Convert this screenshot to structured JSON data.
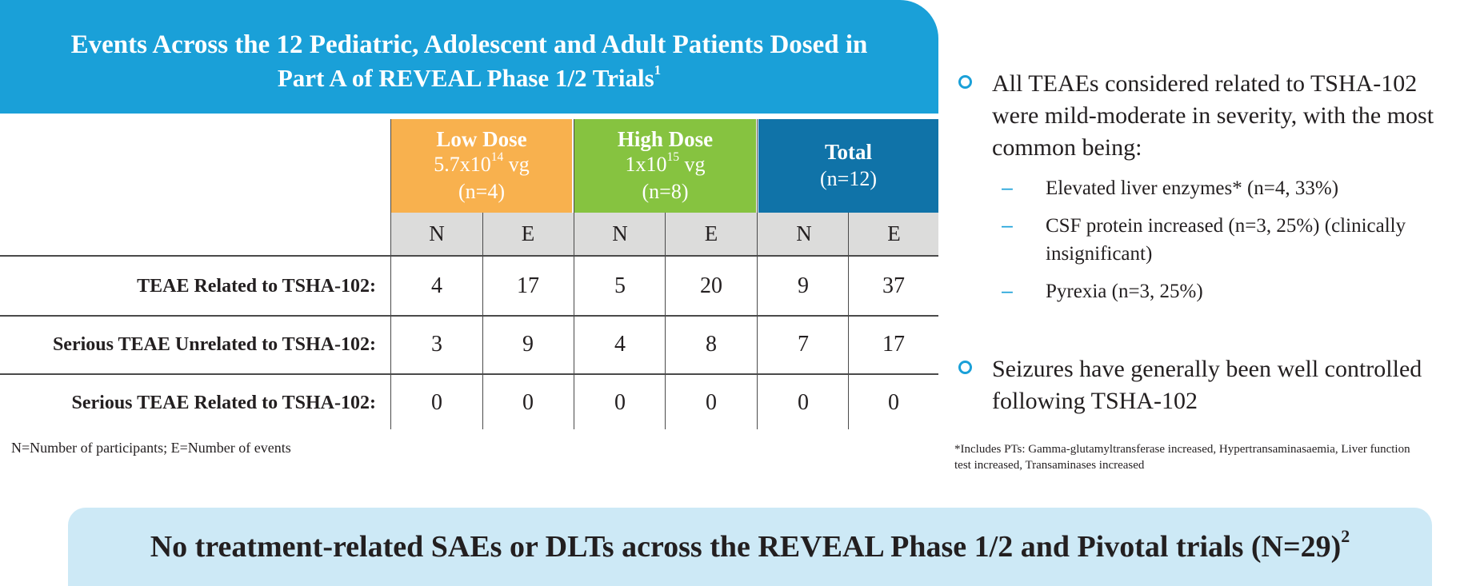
{
  "header": {
    "line1": "Events Across the 12 Pediatric, Adolescent and Adult Patients Dosed in",
    "line2": "Part A of REVEAL Phase 1/2 Trials",
    "line2_sup": "1"
  },
  "groups": {
    "low": {
      "name": "Low Dose",
      "dose_base": "5.7x10",
      "dose_exp": "14",
      "dose_unit": " vg",
      "n": "(n=4)"
    },
    "high": {
      "name": "High Dose",
      "dose_base": "1x10",
      "dose_exp": "15",
      "dose_unit": " vg",
      "n": "(n=8)"
    },
    "total": {
      "name": "Total",
      "n": "(n=12)"
    }
  },
  "subheaders": [
    "N",
    "E",
    "N",
    "E",
    "N",
    "E"
  ],
  "rows": [
    {
      "label": "TEAE Related to TSHA-102:",
      "values": [
        "4",
        "17",
        "5",
        "20",
        "9",
        "37"
      ]
    },
    {
      "label": "Serious TEAE Unrelated to TSHA-102:",
      "values": [
        "3",
        "9",
        "4",
        "8",
        "7",
        "17"
      ]
    },
    {
      "label": "Serious TEAE Related to TSHA-102:",
      "values": [
        "0",
        "0",
        "0",
        "0",
        "0",
        "0"
      ]
    }
  ],
  "footnote_left": "N=Number of participants; E=Number of events",
  "bullets": {
    "first": {
      "line1": "All TEAEs considered related to TSHA-102",
      "line2": "were mild-moderate in severity, with the most",
      "line3": "common being:"
    },
    "subs": [
      {
        "line1": "Elevated liver enzymes* (n=4, 33%)"
      },
      {
        "line1": "CSF protein increased (n=3, 25%) (clinically",
        "line2": "insignificant)"
      },
      {
        "line1": "Pyrexia (n=3, 25%)"
      }
    ],
    "second": {
      "line1": "Seizures have generally been well controlled",
      "line2": "following TSHA-102"
    }
  },
  "footnote_right": {
    "line1": "*Includes PTs: Gamma-glutamyltransferase increased, Hypertransaminasaemia, Liver function",
    "line2": "test increased, Transaminases increased"
  },
  "bottom_banner": {
    "text": "No treatment-related SAEs or DLTs across the REVEAL Phase 1/2 and Pivotal trials (N=29)",
    "sup": "2"
  },
  "colors": {
    "header_blue": "#1aa0d8",
    "low_dose": "#f8b14e",
    "high_dose": "#86c340",
    "total": "#1073a8",
    "subheader_gray": "#dcdcdb",
    "banner_light_blue": "#cde9f6"
  }
}
